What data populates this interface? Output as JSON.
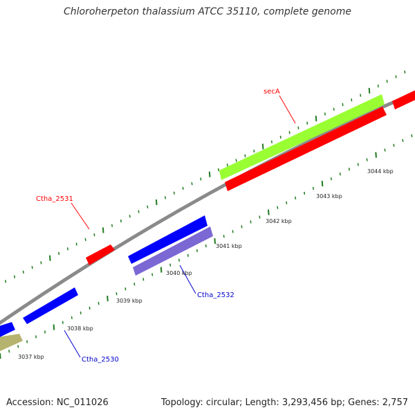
{
  "title": "Chloroherpeton thalassium ATCC 35110, complete genome",
  "footer": {
    "accession": "Accession: NC_011026",
    "summary": "Topology: circular; Length: 3,293,456 bp; Genes: 2,757"
  },
  "colors": {
    "backbone": "#8a8a8a",
    "tick": "#1e7a1e",
    "gene_red": "#ff0000",
    "gene_blue": "#0000ff",
    "gene_purple": "#7b68d4",
    "gene_lime": "#99ff33",
    "gene_olive": "#b5b36e",
    "label_red": "#ff0000",
    "label_blue": "#0000cc"
  },
  "scale_labels": [
    "3037 kbp",
    "3038 kbp",
    "3039 kbp",
    "3040 kbp",
    "3041 kbp",
    "3042 kbp",
    "3043 kbp",
    "3044 kbp"
  ],
  "gene_labels": {
    "seca": "secA",
    "ctha_2531": "Ctha_2531",
    "ctha_2532": "Ctha_2532",
    "ctha_2530": "Ctha_2530"
  }
}
